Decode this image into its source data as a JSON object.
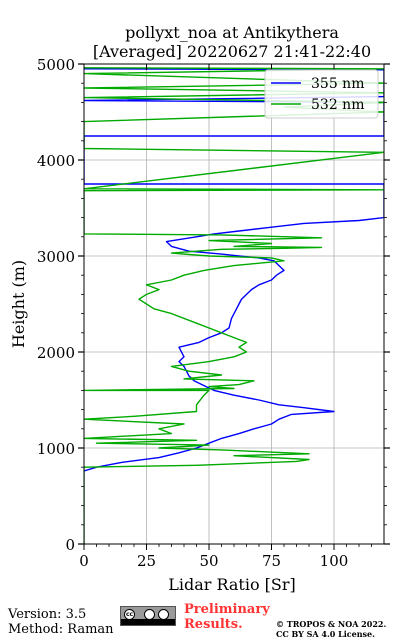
{
  "chart_data": {
    "type": "line",
    "title_line1": "pollyxt_noa at Antikythera",
    "title_line2": "[Averaged] 20220627 21:41-22:40",
    "xlabel": "Lidar Ratio [Sr]",
    "ylabel": "Height (m)",
    "xlim": [
      0,
      120
    ],
    "ylim": [
      0,
      5000
    ],
    "xticks": [
      "0",
      "25",
      "50",
      "75",
      "100"
    ],
    "yticks": [
      "0",
      "1000",
      "2000",
      "3000",
      "4000",
      "5000"
    ],
    "grid": true,
    "legend_position": "top-right",
    "series": [
      {
        "name": "355 nm",
        "color": "#0000ff",
        "points": [
          [
            0,
            760
          ],
          [
            5,
            800
          ],
          [
            15,
            850
          ],
          [
            30,
            900
          ],
          [
            38,
            950
          ],
          [
            45,
            1000
          ],
          [
            50,
            1050
          ],
          [
            55,
            1100
          ],
          [
            62,
            1150
          ],
          [
            68,
            1200
          ],
          [
            75,
            1250
          ],
          [
            78,
            1300
          ],
          [
            83,
            1350
          ],
          [
            100,
            1380
          ],
          [
            88,
            1420
          ],
          [
            78,
            1450
          ],
          [
            70,
            1500
          ],
          [
            60,
            1550
          ],
          [
            52,
            1600
          ],
          [
            48,
            1650
          ],
          [
            44,
            1700
          ],
          [
            42,
            1750
          ],
          [
            41,
            1800
          ],
          [
            40,
            1850
          ],
          [
            38,
            1900
          ],
          [
            40,
            1950
          ],
          [
            38,
            2050
          ],
          [
            46,
            2100
          ],
          [
            50,
            2150
          ],
          [
            55,
            2200
          ],
          [
            58,
            2250
          ],
          [
            59,
            2350
          ],
          [
            61,
            2450
          ],
          [
            62,
            2500
          ],
          [
            63,
            2550
          ],
          [
            65,
            2600
          ],
          [
            67,
            2650
          ],
          [
            70,
            2700
          ],
          [
            75,
            2750
          ],
          [
            77,
            2800
          ],
          [
            80,
            2850
          ],
          [
            78,
            2900
          ],
          [
            76,
            2950
          ],
          [
            70,
            2980
          ],
          [
            62,
            3000
          ],
          [
            55,
            3020
          ],
          [
            42,
            3050
          ],
          [
            35,
            3100
          ],
          [
            33,
            3150
          ],
          [
            45,
            3200
          ],
          [
            52,
            3230
          ],
          [
            62,
            3260
          ],
          [
            75,
            3300
          ],
          [
            88,
            3340
          ],
          [
            110,
            3370
          ],
          [
            120,
            3400
          ],
          [
            120,
            3750
          ],
          [
            0,
            3750
          ],
          [
            0,
            4250
          ],
          [
            120,
            4250
          ],
          [
            120,
            4600
          ],
          [
            0,
            4620
          ],
          [
            120,
            4660
          ],
          [
            120,
            4940
          ],
          [
            0,
            4950
          ]
        ]
      },
      {
        "name": "532 nm",
        "color": "#00aa00",
        "points": [
          [
            0,
            0
          ],
          [
            0,
            760
          ],
          [
            0,
            800
          ],
          [
            45,
            820
          ],
          [
            85,
            860
          ],
          [
            90,
            880
          ],
          [
            60,
            920
          ],
          [
            90,
            940
          ],
          [
            55,
            980
          ],
          [
            30,
            1000
          ],
          [
            50,
            1030
          ],
          [
            5,
            1050
          ],
          [
            45,
            1080
          ],
          [
            0,
            1100
          ],
          [
            35,
            1150
          ],
          [
            30,
            1200
          ],
          [
            40,
            1250
          ],
          [
            0,
            1300
          ],
          [
            20,
            1330
          ],
          [
            45,
            1380
          ],
          [
            45,
            1450
          ],
          [
            48,
            1550
          ],
          [
            50,
            1600
          ],
          [
            0,
            1600
          ],
          [
            60,
            1620
          ],
          [
            50,
            1640
          ],
          [
            62,
            1660
          ],
          [
            68,
            1700
          ],
          [
            40,
            1720
          ],
          [
            55,
            1760
          ],
          [
            42,
            1800
          ],
          [
            35,
            1850
          ],
          [
            50,
            1900
          ],
          [
            60,
            1950
          ],
          [
            65,
            2000
          ],
          [
            62,
            2050
          ],
          [
            65,
            2100
          ],
          [
            60,
            2150
          ],
          [
            55,
            2200
          ],
          [
            50,
            2250
          ],
          [
            45,
            2300
          ],
          [
            35,
            2400
          ],
          [
            28,
            2450
          ],
          [
            25,
            2500
          ],
          [
            22,
            2550
          ],
          [
            25,
            2600
          ],
          [
            30,
            2650
          ],
          [
            25,
            2700
          ],
          [
            35,
            2750
          ],
          [
            40,
            2800
          ],
          [
            48,
            2850
          ],
          [
            60,
            2900
          ],
          [
            80,
            2950
          ],
          [
            75,
            2980
          ],
          [
            50,
            3000
          ],
          [
            35,
            3030
          ],
          [
            55,
            3070
          ],
          [
            80,
            3080
          ],
          [
            95,
            3090
          ],
          [
            60,
            3100
          ],
          [
            75,
            3130
          ],
          [
            50,
            3160
          ],
          [
            95,
            3190
          ],
          [
            55,
            3220
          ],
          [
            0,
            3230
          ],
          [
            0,
            3680
          ],
          [
            120,
            3690
          ],
          [
            0,
            3700
          ],
          [
            120,
            4080
          ],
          [
            0,
            4120
          ],
          [
            0,
            4400
          ],
          [
            120,
            4500
          ],
          [
            80,
            4550
          ],
          [
            120,
            4600
          ],
          [
            0,
            4650
          ],
          [
            120,
            4700
          ],
          [
            0,
            4750
          ],
          [
            120,
            4800
          ],
          [
            0,
            4900
          ],
          [
            120,
            4950
          ],
          [
            0,
            4960
          ]
        ]
      }
    ]
  },
  "footer": {
    "version": "Version: 3.5",
    "method": "Method: Raman",
    "cc_label": "cc",
    "preliminary": "Preliminary\nResults.",
    "copyright": "© TROPOS & NOA 2022.\nCC BY SA 4.0 License."
  }
}
